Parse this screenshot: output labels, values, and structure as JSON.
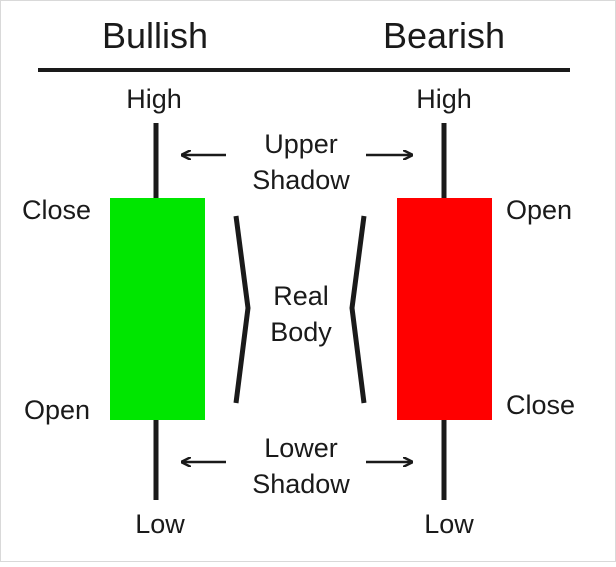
{
  "headings": {
    "bullish": "Bullish",
    "bearish": "Bearish"
  },
  "bullish": {
    "high": "High",
    "close": "Close",
    "open": "Open",
    "low": "Low",
    "body_color": "#00e600"
  },
  "bearish": {
    "high": "High",
    "open": "Open",
    "close": "Close",
    "low": "Low",
    "body_color": "#ff0000"
  },
  "annotations": {
    "upper_shadow": [
      "Upper",
      "Shadow"
    ],
    "real_body": [
      "Real",
      "Body"
    ],
    "lower_shadow": [
      "Lower",
      "Shadow"
    ]
  }
}
